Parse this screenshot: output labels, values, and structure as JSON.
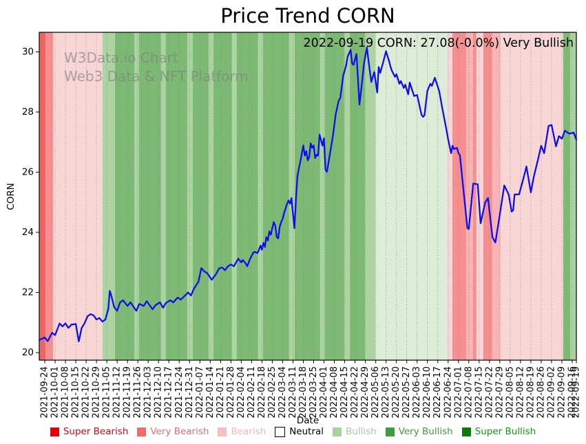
{
  "page": {
    "title": "Price Trend CORN"
  },
  "watermark": {
    "line1": "W3Data.io Chart",
    "line2": "Web3 Data & NFT Platform"
  },
  "annotation": "2022-09-19 CORN: 27.08(-0.0%) Very Bullish",
  "chart_data": {
    "type": "line",
    "title": "Price Trend CORN",
    "xlabel": "Date",
    "ylabel": "CORN",
    "ylim": [
      19.75,
      30.65
    ],
    "yticks": [
      20,
      22,
      24,
      26,
      28,
      30
    ],
    "grid": {
      "vertical": "dotted",
      "horizontal": false
    },
    "x_tick_labels": [
      "2021-09-24",
      "2021-10-01",
      "2021-10-08",
      "2021-10-15",
      "2021-10-22",
      "2021-10-29",
      "2021-11-05",
      "2021-11-12",
      "2021-11-19",
      "2021-11-26",
      "2021-12-03",
      "2021-12-10",
      "2021-12-17",
      "2021-12-24",
      "2021-12-31",
      "2022-01-07",
      "2022-01-14",
      "2022-01-21",
      "2022-01-28",
      "2022-02-04",
      "2022-02-11",
      "2022-02-18",
      "2022-02-25",
      "2022-03-04",
      "2022-03-11",
      "2022-03-18",
      "2022-03-25",
      "2022-04-01",
      "2022-04-08",
      "2022-04-15",
      "2022-04-22",
      "2022-04-29",
      "2022-05-06",
      "2022-05-13",
      "2022-05-20",
      "2022-05-27",
      "2022-06-03",
      "2022-06-10",
      "2022-06-17",
      "2022-06-24",
      "2022-07-01",
      "2022-07-08",
      "2022-07-15",
      "2022-07-22",
      "2022-07-29",
      "2022-08-05",
      "2022-08-12",
      "2022-08-19",
      "2022-08-26",
      "2022-09-02",
      "2022-09-09",
      "2022-09-16",
      "2022-09-19"
    ],
    "last_point": {
      "date": "2022-09-19",
      "value": 27.08,
      "change_pct": "-0.0%",
      "sentiment": "Very Bullish"
    },
    "sentiment_colors": {
      "super_bearish": "#e8000b",
      "very_bearish_strong": "#ee6565",
      "very_bearish": "#f58f8f",
      "very_bearish_light": "#f8b4b4",
      "bearish": "#f9d6d6",
      "neutral": "#ffffff",
      "bullish_pale": "#dcecd6",
      "bullish": "#abd4a2",
      "very_bullish": "#7cba73",
      "super_bullish": "#0b7a0b"
    },
    "background_bands": [
      {
        "from": -3.7,
        "to": 0.5,
        "sentiment": "very_bearish_strong"
      },
      {
        "from": 0.5,
        "to": 5.6,
        "sentiment": "very_bearish"
      },
      {
        "from": 5.6,
        "to": 39,
        "sentiment": "bearish"
      },
      {
        "from": 39,
        "to": 47.5,
        "sentiment": "bullish"
      },
      {
        "from": 47.5,
        "to": 60.6,
        "sentiment": "very_bullish"
      },
      {
        "from": 60.6,
        "to": 63.8,
        "sentiment": "bullish"
      },
      {
        "from": 63.8,
        "to": 78.7,
        "sentiment": "very_bullish"
      },
      {
        "from": 78.7,
        "to": 82,
        "sentiment": "bullish"
      },
      {
        "from": 82,
        "to": 96.5,
        "sentiment": "very_bullish"
      },
      {
        "from": 96.5,
        "to": 100.2,
        "sentiment": "bullish"
      },
      {
        "from": 100.2,
        "to": 110.9,
        "sentiment": "very_bullish"
      },
      {
        "from": 110.9,
        "to": 114.2,
        "sentiment": "bullish"
      },
      {
        "from": 114.2,
        "to": 126.7,
        "sentiment": "very_bullish"
      },
      {
        "from": 126.7,
        "to": 130,
        "sentiment": "bullish"
      },
      {
        "from": 130,
        "to": 144.4,
        "sentiment": "very_bullish"
      },
      {
        "from": 144.4,
        "to": 147.7,
        "sentiment": "bullish"
      },
      {
        "from": 147.7,
        "to": 165.4,
        "sentiment": "very_bullish"
      },
      {
        "from": 165.4,
        "to": 169.2,
        "sentiment": "bullish"
      },
      {
        "from": 169.2,
        "to": 186.4,
        "sentiment": "very_bullish"
      },
      {
        "from": 186.4,
        "to": 189.6,
        "sentiment": "bullish"
      },
      {
        "from": 189.6,
        "to": 202.7,
        "sentiment": "very_bullish"
      },
      {
        "from": 202.7,
        "to": 206.4,
        "sentiment": "bullish"
      },
      {
        "from": 206.4,
        "to": 216.7,
        "sentiment": "very_bullish"
      },
      {
        "from": 216.7,
        "to": 223.7,
        "sentiment": "bullish"
      },
      {
        "from": 223.7,
        "to": 272.6,
        "sentiment": "bullish_pale"
      },
      {
        "from": 272.6,
        "to": 275.9,
        "sentiment": "bearish"
      },
      {
        "from": 275.9,
        "to": 285.2,
        "sentiment": "very_bearish"
      },
      {
        "from": 285.2,
        "to": 289.9,
        "sentiment": "very_bearish_light"
      },
      {
        "from": 289.9,
        "to": 292.2,
        "sentiment": "very_bearish"
      },
      {
        "from": 292.2,
        "to": 296.8,
        "sentiment": "bearish"
      },
      {
        "from": 296.8,
        "to": 302.9,
        "sentiment": "very_bearish"
      },
      {
        "from": 302.9,
        "to": 308.5,
        "sentiment": "very_bearish_light"
      },
      {
        "from": 308.5,
        "to": 350.9,
        "sentiment": "bearish"
      },
      {
        "from": 350.9,
        "to": 355.6,
        "sentiment": "very_bullish"
      },
      {
        "from": 355.6,
        "to": 360,
        "sentiment": "bullish"
      }
    ],
    "series": [
      {
        "name": "CORN",
        "color": "#0d0dee",
        "points": [
          [
            -3.7,
            20.42
          ],
          [
            0,
            20.5
          ],
          [
            2,
            20.38
          ],
          [
            5,
            20.66
          ],
          [
            7,
            20.58
          ],
          [
            10,
            20.97
          ],
          [
            12,
            20.87
          ],
          [
            14,
            20.97
          ],
          [
            16,
            20.82
          ],
          [
            18,
            20.93
          ],
          [
            21,
            20.95
          ],
          [
            23,
            20.37
          ],
          [
            25,
            20.82
          ],
          [
            27,
            20.98
          ],
          [
            29,
            21.21
          ],
          [
            31,
            21.28
          ],
          [
            33,
            21.24
          ],
          [
            35,
            21.1
          ],
          [
            37,
            21.15
          ],
          [
            39,
            21.03
          ],
          [
            41,
            21.1
          ],
          [
            43,
            21.45
          ],
          [
            44,
            22.05
          ],
          [
            45,
            21.9
          ],
          [
            47,
            21.51
          ],
          [
            49,
            21.39
          ],
          [
            51,
            21.67
          ],
          [
            53,
            21.74
          ],
          [
            56,
            21.55
          ],
          [
            58,
            21.67
          ],
          [
            62,
            21.39
          ],
          [
            64,
            21.62
          ],
          [
            67,
            21.55
          ],
          [
            69,
            21.71
          ],
          [
            73,
            21.44
          ],
          [
            75,
            21.58
          ],
          [
            78,
            21.67
          ],
          [
            80,
            21.49
          ],
          [
            82,
            21.65
          ],
          [
            85,
            21.74
          ],
          [
            87,
            21.67
          ],
          [
            90,
            21.83
          ],
          [
            92,
            21.76
          ],
          [
            95,
            21.9
          ],
          [
            97,
            22.0
          ],
          [
            99,
            21.9
          ],
          [
            101,
            22.13
          ],
          [
            104,
            22.35
          ],
          [
            106,
            22.81
          ],
          [
            108,
            22.7
          ],
          [
            110,
            22.64
          ],
          [
            113,
            22.42
          ],
          [
            116,
            22.62
          ],
          [
            118,
            22.8
          ],
          [
            120,
            22.83
          ],
          [
            122,
            22.74
          ],
          [
            124,
            22.87
          ],
          [
            126,
            22.93
          ],
          [
            128,
            22.87
          ],
          [
            130,
            23.04
          ],
          [
            131,
            23.12
          ],
          [
            133,
            23.0
          ],
          [
            134,
            23.08
          ],
          [
            136,
            22.97
          ],
          [
            137,
            22.87
          ],
          [
            139,
            23.12
          ],
          [
            141,
            23.31
          ],
          [
            142,
            23.35
          ],
          [
            144,
            23.31
          ],
          [
            145,
            23.42
          ],
          [
            146,
            23.56
          ],
          [
            147,
            23.42
          ],
          [
            148,
            23.65
          ],
          [
            149,
            23.51
          ],
          [
            150,
            23.84
          ],
          [
            151,
            23.73
          ],
          [
            152,
            24.03
          ],
          [
            153,
            23.92
          ],
          [
            154,
            24.14
          ],
          [
            155,
            24.34
          ],
          [
            156,
            24.22
          ],
          [
            157,
            23.84
          ],
          [
            158,
            23.8
          ],
          [
            159,
            24.18
          ],
          [
            160,
            24.34
          ],
          [
            161,
            24.45
          ],
          [
            162,
            24.64
          ],
          [
            163,
            24.79
          ],
          [
            164,
            24.95
          ],
          [
            165,
            25.06
          ],
          [
            166,
            24.95
          ],
          [
            167,
            25.14
          ],
          [
            168,
            24.6
          ],
          [
            169,
            24.14
          ],
          [
            170,
            25.1
          ],
          [
            171,
            25.86
          ],
          [
            172,
            26.13
          ],
          [
            173,
            26.35
          ],
          [
            174,
            26.62
          ],
          [
            175,
            26.89
          ],
          [
            176,
            26.55
          ],
          [
            177,
            26.7
          ],
          [
            178,
            26.39
          ],
          [
            179,
            26.51
          ],
          [
            180,
            26.96
          ],
          [
            181,
            26.81
          ],
          [
            182,
            26.89
          ],
          [
            183,
            26.47
          ],
          [
            184,
            26.58
          ],
          [
            185,
            26.55
          ],
          [
            186,
            27.25
          ],
          [
            188,
            26.88
          ],
          [
            189,
            27.13
          ],
          [
            190,
            26.08
          ],
          [
            191,
            26.01
          ],
          [
            193,
            26.6
          ],
          [
            195,
            27.2
          ],
          [
            197,
            27.95
          ],
          [
            199,
            28.39
          ],
          [
            200,
            28.46
          ],
          [
            202,
            29.21
          ],
          [
            204,
            29.55
          ],
          [
            205,
            29.85
          ],
          [
            207,
            30.07
          ],
          [
            208,
            29.62
          ],
          [
            209,
            29.57
          ],
          [
            211,
            29.93
          ],
          [
            213,
            28.25
          ],
          [
            215,
            29.1
          ],
          [
            216,
            29.6
          ],
          [
            218,
            30.15
          ],
          [
            219,
            29.75
          ],
          [
            221,
            29.0
          ],
          [
            223,
            29.33
          ],
          [
            225,
            28.65
          ],
          [
            226,
            29.5
          ],
          [
            227,
            29.3
          ],
          [
            229,
            29.65
          ],
          [
            231,
            30.02
          ],
          [
            233,
            29.7
          ],
          [
            234,
            29.51
          ],
          [
            235,
            29.37
          ],
          [
            237,
            29.17
          ],
          [
            238,
            29.26
          ],
          [
            240,
            28.94
          ],
          [
            241,
            29.03
          ],
          [
            243,
            28.8
          ],
          [
            244,
            28.91
          ],
          [
            246,
            28.59
          ],
          [
            247,
            28.98
          ],
          [
            250,
            28.53
          ],
          [
            252,
            28.57
          ],
          [
            255,
            27.91
          ],
          [
            256,
            27.84
          ],
          [
            257,
            27.89
          ],
          [
            259,
            28.71
          ],
          [
            261,
            28.94
          ],
          [
            262,
            28.87
          ],
          [
            264,
            29.14
          ],
          [
            267,
            28.69
          ],
          [
            269,
            28.14
          ],
          [
            272,
            27.38
          ],
          [
            273,
            27.09
          ],
          [
            275,
            26.63
          ],
          [
            276,
            26.88
          ],
          [
            277,
            26.77
          ],
          [
            279,
            26.81
          ],
          [
            280,
            26.63
          ],
          [
            281,
            26.57
          ],
          [
            286,
            24.14
          ],
          [
            287,
            24.11
          ],
          [
            290,
            25.62
          ],
          [
            293,
            25.6
          ],
          [
            295,
            24.3
          ],
          [
            298,
            24.98
          ],
          [
            300,
            25.14
          ],
          [
            303,
            23.84
          ],
          [
            305,
            23.66
          ],
          [
            308,
            24.6
          ],
          [
            311,
            25.56
          ],
          [
            314,
            25.26
          ],
          [
            316,
            24.69
          ],
          [
            317,
            24.73
          ],
          [
            318,
            25.26
          ],
          [
            321,
            25.26
          ],
          [
            324,
            25.8
          ],
          [
            326,
            26.19
          ],
          [
            329,
            25.33
          ],
          [
            331,
            25.85
          ],
          [
            334,
            26.45
          ],
          [
            336,
            26.88
          ],
          [
            338,
            26.63
          ],
          [
            341,
            27.54
          ],
          [
            343,
            27.57
          ],
          [
            346,
            26.86
          ],
          [
            348,
            27.2
          ],
          [
            350,
            27.11
          ],
          [
            352,
            27.38
          ],
          [
            355,
            27.28
          ],
          [
            358,
            27.32
          ],
          [
            360,
            27.08
          ]
        ]
      }
    ],
    "legend": {
      "position": "bottom",
      "items": [
        {
          "label": "Super Bearish",
          "color": "#e8000b",
          "text_color": "#e8000b",
          "border": false
        },
        {
          "label": "Very Bearish",
          "color": "#f26a6a",
          "text_color": "#f26a6a",
          "border": false
        },
        {
          "label": "Bearish",
          "color": "#f6c0c0",
          "text_color": "#f5b6b6",
          "border": false
        },
        {
          "label": "Neutral",
          "color": "#ffffff",
          "text_color": "#000000",
          "border": true
        },
        {
          "label": "Bullish",
          "color": "#a4d49c",
          "text_color": "#a0cf98",
          "border": false
        },
        {
          "label": "Very Bullish",
          "color": "#3f9c3f",
          "text_color": "#3f9c3f",
          "border": false
        },
        {
          "label": "Super Bullish",
          "color": "#0b7a0b",
          "text_color": "#0aa00a",
          "border": false
        }
      ]
    }
  }
}
